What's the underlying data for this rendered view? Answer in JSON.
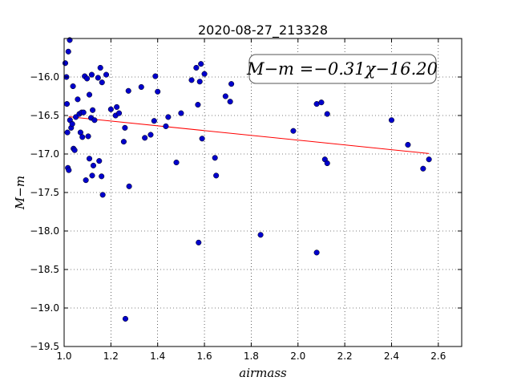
{
  "chart_data": {
    "type": "scatter",
    "title": "2020-08-27_213328",
    "xlabel": "airmass",
    "ylabel": "M−m",
    "xlim": [
      1.0,
      2.7
    ],
    "ylim": [
      -19.5,
      -15.5
    ],
    "y_inverted": true,
    "xticks": [
      1.0,
      1.2,
      1.4,
      1.6,
      1.8,
      2.0,
      2.2,
      2.4,
      2.6
    ],
    "yticks": [
      -16.0,
      -16.5,
      -17.0,
      -17.5,
      -18.0,
      -18.5,
      -19.0,
      -19.5
    ],
    "xtick_labels": [
      "1.0",
      "1.2",
      "1.4",
      "1.6",
      "1.8",
      "2.0",
      "2.2",
      "2.4",
      "2.6"
    ],
    "ytick_labels": [
      "−16.0",
      "−16.5",
      "−17.0",
      "−17.5",
      "−18.0",
      "−18.5",
      "−19.0",
      "−19.5"
    ],
    "grid": true,
    "annotation": "M−m =−0.31χ−16.20",
    "fit": {
      "slope": -0.31,
      "intercept": -16.2,
      "x_range": [
        1.02,
        2.56
      ],
      "color": "#ff0000"
    },
    "marker_color": "#0000cc",
    "points": [
      [
        1.005,
        -15.82
      ],
      [
        1.018,
        -15.67
      ],
      [
        1.024,
        -15.52
      ],
      [
        1.01,
        -16.0
      ],
      [
        1.012,
        -16.35
      ],
      [
        1.014,
        -16.72
      ],
      [
        1.016,
        -17.18
      ],
      [
        1.02,
        -17.21
      ],
      [
        1.025,
        -16.56
      ],
      [
        1.03,
        -16.66
      ],
      [
        1.035,
        -16.61
      ],
      [
        1.038,
        -16.12
      ],
      [
        1.04,
        -16.93
      ],
      [
        1.045,
        -16.95
      ],
      [
        1.05,
        -16.52
      ],
      [
        1.058,
        -16.29
      ],
      [
        1.065,
        -16.48
      ],
      [
        1.07,
        -16.72
      ],
      [
        1.075,
        -16.46
      ],
      [
        1.078,
        -16.78
      ],
      [
        1.083,
        -16.46
      ],
      [
        1.088,
        -15.99
      ],
      [
        1.093,
        -17.34
      ],
      [
        1.098,
        -16.02
      ],
      [
        1.103,
        -16.77
      ],
      [
        1.108,
        -17.06
      ],
      [
        1.108,
        -16.23
      ],
      [
        1.115,
        -16.53
      ],
      [
        1.118,
        -15.97
      ],
      [
        1.12,
        -17.28
      ],
      [
        1.122,
        -16.43
      ],
      [
        1.125,
        -17.15
      ],
      [
        1.13,
        -16.56
      ],
      [
        1.145,
        -16.01
      ],
      [
        1.15,
        -17.09
      ],
      [
        1.155,
        -15.88
      ],
      [
        1.16,
        -17.29
      ],
      [
        1.162,
        -16.07
      ],
      [
        1.165,
        -17.53
      ],
      [
        1.18,
        -15.97
      ],
      [
        1.2,
        -16.42
      ],
      [
        1.22,
        -16.5
      ],
      [
        1.225,
        -16.39
      ],
      [
        1.235,
        -16.47
      ],
      [
        1.255,
        -16.84
      ],
      [
        1.26,
        -16.66
      ],
      [
        1.262,
        -19.14
      ],
      [
        1.275,
        -16.18
      ],
      [
        1.278,
        -17.42
      ],
      [
        1.33,
        -16.13
      ],
      [
        1.345,
        -16.79
      ],
      [
        1.37,
        -16.75
      ],
      [
        1.385,
        -16.57
      ],
      [
        1.39,
        -15.99
      ],
      [
        1.4,
        -16.19
      ],
      [
        1.435,
        -16.64
      ],
      [
        1.445,
        -16.52
      ],
      [
        1.48,
        -17.11
      ],
      [
        1.5,
        -16.47
      ],
      [
        1.545,
        -16.04
      ],
      [
        1.565,
        -15.88
      ],
      [
        1.572,
        -16.36
      ],
      [
        1.58,
        -16.06
      ],
      [
        1.585,
        -15.83
      ],
      [
        1.59,
        -16.8
      ],
      [
        1.6,
        -15.96
      ],
      [
        1.575,
        -18.15
      ],
      [
        1.645,
        -17.05
      ],
      [
        1.65,
        -17.28
      ],
      [
        1.69,
        -16.25
      ],
      [
        1.71,
        -16.32
      ],
      [
        1.715,
        -16.09
      ],
      [
        1.84,
        -18.05
      ],
      [
        1.98,
        -16.7
      ],
      [
        2.08,
        -18.28
      ],
      [
        2.08,
        -16.35
      ],
      [
        2.1,
        -16.33
      ],
      [
        2.115,
        -17.07
      ],
      [
        2.125,
        -17.12
      ],
      [
        2.125,
        -16.48
      ],
      [
        2.4,
        -16.56
      ],
      [
        2.47,
        -16.88
      ],
      [
        2.535,
        -17.19
      ],
      [
        2.56,
        -17.07
      ]
    ]
  }
}
